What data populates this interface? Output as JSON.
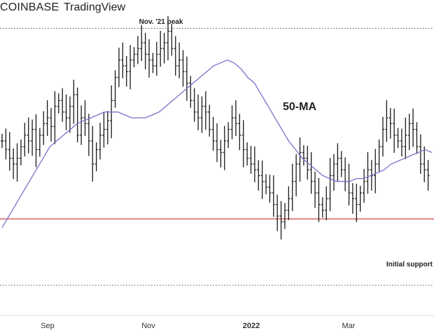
{
  "header": {
    "source": "COINBASE",
    "separator": "·",
    "platform": "TradingView"
  },
  "colors": {
    "bars": "#1a1a1a",
    "ma_line": "#7b6fc9",
    "support_line": "#d64545",
    "dotted_level": "#555555"
  },
  "chart_data": {
    "type": "ohlc",
    "title": "",
    "x_ticks": [
      "Sep",
      "Nov",
      "2022",
      "Mar"
    ],
    "x_tick_bold": [
      false,
      false,
      true,
      false
    ],
    "annotations": {
      "peak": "Nov. '21 peak",
      "ma": "50-MA",
      "support": "Initial support"
    },
    "series": [
      {
        "name": "price",
        "kind": "ohlc_bars",
        "values": [
          58,
          55,
          52,
          50,
          52,
          56,
          60,
          58,
          62,
          55,
          60,
          64,
          66,
          63,
          70,
          72,
          68,
          66,
          70,
          74,
          60,
          66,
          64,
          58,
          50,
          55,
          60,
          62,
          65,
          72,
          80,
          86,
          84,
          82,
          86,
          88,
          90,
          92,
          88,
          86,
          84,
          88,
          90,
          92,
          96,
          90,
          84,
          86,
          82,
          78,
          72,
          68,
          66,
          70,
          68,
          62,
          58,
          55,
          54,
          58,
          62,
          66,
          64,
          60,
          55,
          52,
          50,
          48,
          46,
          44,
          42,
          40,
          36,
          32,
          30,
          34,
          38,
          44,
          50,
          54,
          52,
          48,
          44,
          40,
          36,
          34,
          38,
          46,
          50,
          52,
          48,
          44,
          40,
          38,
          36,
          40,
          44,
          48,
          46,
          50,
          56,
          62,
          66,
          64,
          60,
          58,
          56,
          60,
          64,
          62,
          56,
          50,
          48,
          46
        ]
      },
      {
        "name": "50-MA",
        "kind": "line",
        "values": [
          28,
          32,
          36,
          40,
          44,
          48,
          52,
          56,
          58,
          60,
          62,
          64,
          65,
          66,
          67,
          68,
          68,
          68,
          67,
          66,
          66,
          66,
          67,
          68,
          70,
          72,
          74,
          76,
          78,
          80,
          82,
          84,
          85,
          86,
          85,
          83,
          80,
          78,
          74,
          70,
          66,
          62,
          58,
          55,
          52,
          50,
          48,
          46,
          45,
          44,
          44,
          44,
          45,
          45,
          46,
          47,
          48,
          50,
          51,
          52,
          53,
          54,
          55,
          54
        ]
      }
    ],
    "levels": {
      "peak_dotted": 97,
      "support_red": 31,
      "initial_support_dotted": 8
    },
    "ylim": [
      0,
      100
    ],
    "grid": false
  }
}
